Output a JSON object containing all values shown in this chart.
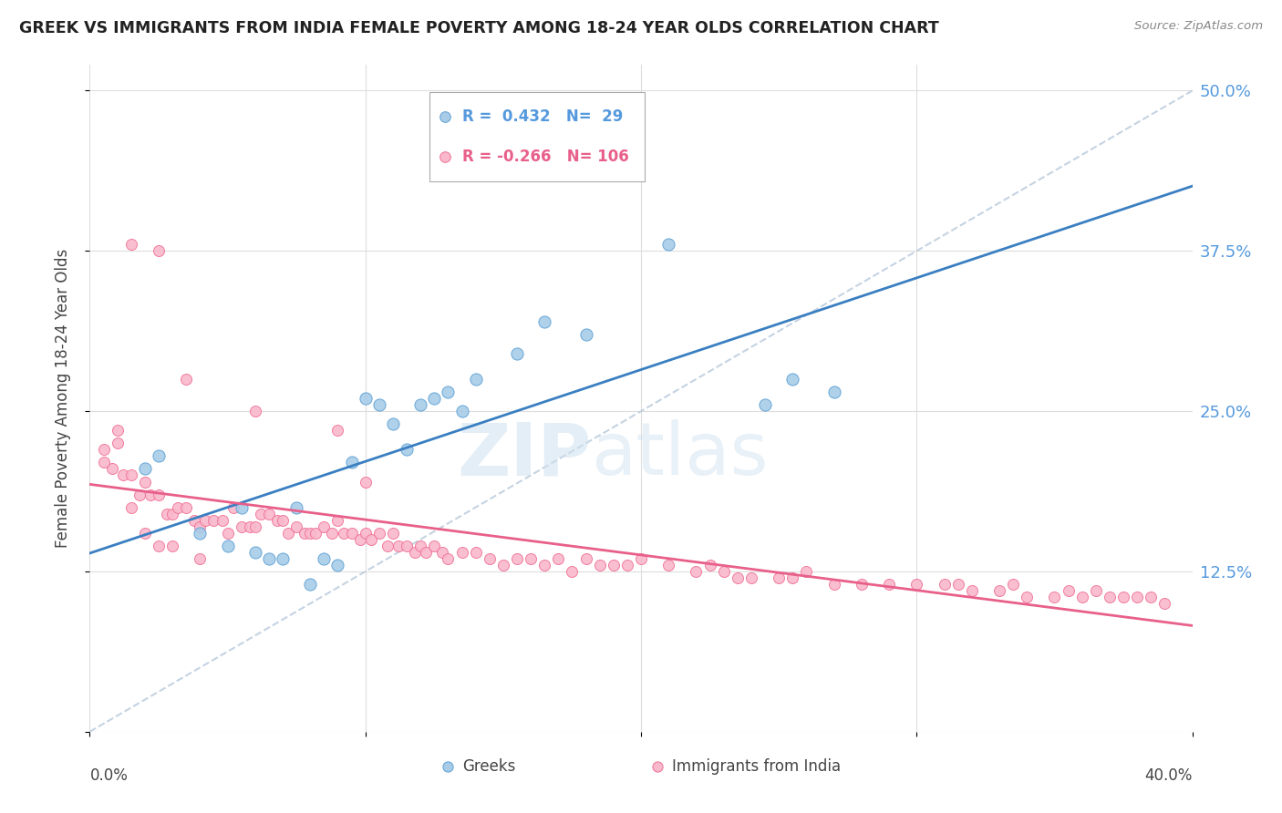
{
  "title": "GREEK VS IMMIGRANTS FROM INDIA FEMALE POVERTY AMONG 18-24 YEAR OLDS CORRELATION CHART",
  "source": "Source: ZipAtlas.com",
  "ylabel": "Female Poverty Among 18-24 Year Olds",
  "xlim": [
    0.0,
    0.4
  ],
  "ylim": [
    0.0,
    0.52
  ],
  "yticks": [
    0.0,
    0.125,
    0.25,
    0.375,
    0.5
  ],
  "ytick_labels": [
    "",
    "12.5%",
    "25.0%",
    "37.5%",
    "50.0%"
  ],
  "xtick_labels": [
    "0.0%",
    "",
    "",
    "",
    "40.0%"
  ],
  "legend_r_blue": "0.432",
  "legend_n_blue": "29",
  "legend_r_pink": "-0.266",
  "legend_n_pink": "106",
  "color_blue_fill": "#a8cce8",
  "color_pink_fill": "#f9b8cb",
  "color_blue_edge": "#5a9fd4",
  "color_pink_edge": "#f07095",
  "color_blue_line": "#3a7fc1",
  "color_pink_line": "#e8608a",
  "color_dashed": "#bbccdd",
  "blue_x": [
    0.02,
    0.025,
    0.04,
    0.05,
    0.055,
    0.06,
    0.065,
    0.07,
    0.075,
    0.08,
    0.085,
    0.09,
    0.095,
    0.1,
    0.105,
    0.11,
    0.115,
    0.12,
    0.125,
    0.13,
    0.135,
    0.14,
    0.155,
    0.165,
    0.18,
    0.21,
    0.245,
    0.255,
    0.27
  ],
  "blue_y": [
    0.205,
    0.215,
    0.155,
    0.145,
    0.175,
    0.14,
    0.135,
    0.135,
    0.175,
    0.115,
    0.135,
    0.13,
    0.21,
    0.26,
    0.255,
    0.24,
    0.22,
    0.255,
    0.26,
    0.265,
    0.25,
    0.275,
    0.295,
    0.32,
    0.31,
    0.38,
    0.255,
    0.275,
    0.265
  ],
  "pink_x": [
    0.005,
    0.008,
    0.01,
    0.012,
    0.015,
    0.015,
    0.018,
    0.02,
    0.02,
    0.022,
    0.025,
    0.025,
    0.028,
    0.03,
    0.03,
    0.032,
    0.035,
    0.038,
    0.04,
    0.04,
    0.042,
    0.045,
    0.048,
    0.05,
    0.052,
    0.055,
    0.058,
    0.06,
    0.062,
    0.065,
    0.068,
    0.07,
    0.072,
    0.075,
    0.078,
    0.08,
    0.082,
    0.085,
    0.088,
    0.09,
    0.092,
    0.095,
    0.098,
    0.1,
    0.102,
    0.105,
    0.108,
    0.11,
    0.112,
    0.115,
    0.118,
    0.12,
    0.122,
    0.125,
    0.128,
    0.13,
    0.135,
    0.14,
    0.145,
    0.15,
    0.155,
    0.16,
    0.165,
    0.17,
    0.175,
    0.18,
    0.185,
    0.19,
    0.195,
    0.2,
    0.21,
    0.22,
    0.225,
    0.23,
    0.235,
    0.24,
    0.25,
    0.255,
    0.26,
    0.27,
    0.28,
    0.29,
    0.3,
    0.31,
    0.315,
    0.32,
    0.33,
    0.335,
    0.34,
    0.35,
    0.355,
    0.36,
    0.365,
    0.37,
    0.375,
    0.38,
    0.385,
    0.39,
    0.005,
    0.01,
    0.015,
    0.025,
    0.035,
    0.06,
    0.09,
    0.1
  ],
  "pink_y": [
    0.22,
    0.205,
    0.235,
    0.2,
    0.2,
    0.175,
    0.185,
    0.195,
    0.155,
    0.185,
    0.185,
    0.145,
    0.17,
    0.17,
    0.145,
    0.175,
    0.175,
    0.165,
    0.16,
    0.135,
    0.165,
    0.165,
    0.165,
    0.155,
    0.175,
    0.16,
    0.16,
    0.16,
    0.17,
    0.17,
    0.165,
    0.165,
    0.155,
    0.16,
    0.155,
    0.155,
    0.155,
    0.16,
    0.155,
    0.165,
    0.155,
    0.155,
    0.15,
    0.155,
    0.15,
    0.155,
    0.145,
    0.155,
    0.145,
    0.145,
    0.14,
    0.145,
    0.14,
    0.145,
    0.14,
    0.135,
    0.14,
    0.14,
    0.135,
    0.13,
    0.135,
    0.135,
    0.13,
    0.135,
    0.125,
    0.135,
    0.13,
    0.13,
    0.13,
    0.135,
    0.13,
    0.125,
    0.13,
    0.125,
    0.12,
    0.12,
    0.12,
    0.12,
    0.125,
    0.115,
    0.115,
    0.115,
    0.115,
    0.115,
    0.115,
    0.11,
    0.11,
    0.115,
    0.105,
    0.105,
    0.11,
    0.105,
    0.11,
    0.105,
    0.105,
    0.105,
    0.105,
    0.1,
    0.21,
    0.225,
    0.38,
    0.375,
    0.275,
    0.25,
    0.235,
    0.195
  ]
}
